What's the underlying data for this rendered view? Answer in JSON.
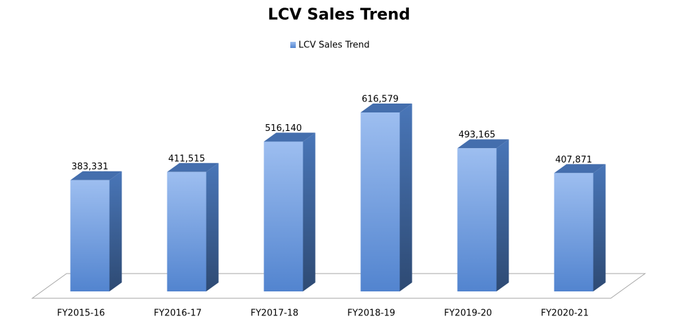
{
  "chart_data": {
    "type": "bar3d",
    "title": "LCV Sales Trend",
    "categories": [
      "FY2015-16",
      "FY2016-17",
      "FY2017-18",
      "FY2018-19",
      "FY2019-20",
      "FY2020-21"
    ],
    "series": [
      {
        "name": "LCV Sales Trend",
        "color": "#5b93e6",
        "values": [
          383331,
          411515,
          516140,
          616579,
          493165,
          407871
        ],
        "value_labels": [
          "383,331",
          "411,515",
          "516,140",
          "616,579",
          "493,165",
          "407,871"
        ]
      }
    ],
    "legend": "top"
  }
}
